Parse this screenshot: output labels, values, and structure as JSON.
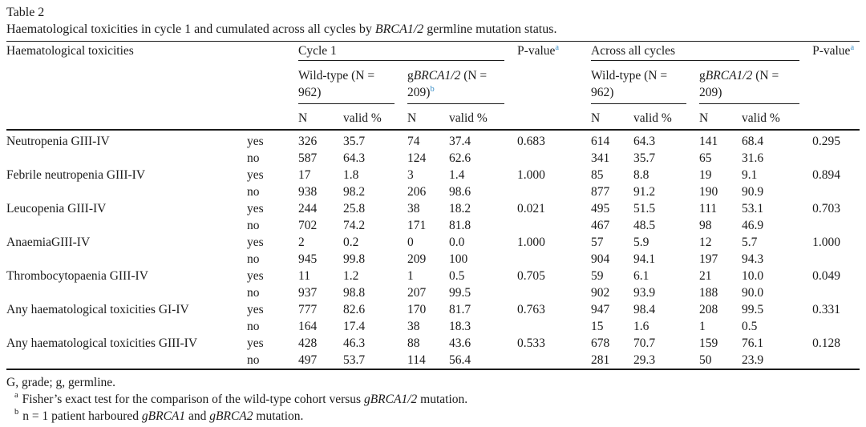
{
  "title": "Table 2",
  "caption": {
    "prefix": "Haematological toxicities in cycle 1 and cumulated across all cycles by ",
    "italic": "BRCA1/2",
    "suffix": " germline mutation status."
  },
  "colors": {
    "superscript_accent": "#3a8fc7",
    "text": "#1b1b1b"
  },
  "header": {
    "toxicities_label": "Haematological toxicities",
    "cycle1": "Cycle 1",
    "across": "Across all cycles",
    "pvalue": "P-value",
    "pvalue_sup": "a",
    "wildtype": "Wild-type (N = 962)",
    "gbrca_g": "g",
    "gbrca_gene": "BRCA1/2",
    "gbrca_rest": " (N = 209)",
    "gbrca_sup": "b",
    "n_label": "N",
    "valid_label": "valid %"
  },
  "rows": [
    {
      "label": "Neutropenia GIII-IV",
      "resp": "yes",
      "c": [
        "326",
        "35.7",
        "74",
        "37.4",
        "0.683",
        "614",
        "64.3",
        "141",
        "68.4",
        "0.295"
      ]
    },
    {
      "label": "",
      "resp": "no",
      "c": [
        "587",
        "64.3",
        "124",
        "62.6",
        "",
        "341",
        "35.7",
        "65",
        "31.6",
        ""
      ]
    },
    {
      "label": "Febrile neutropenia GIII-IV",
      "resp": "yes",
      "c": [
        "17",
        "1.8",
        "3",
        "1.4",
        "1.000",
        "85",
        "8.8",
        "19",
        "9.1",
        "0.894"
      ]
    },
    {
      "label": "",
      "resp": "no",
      "c": [
        "938",
        "98.2",
        "206",
        "98.6",
        "",
        "877",
        "91.2",
        "190",
        "90.9",
        ""
      ]
    },
    {
      "label": "Leucopenia GIII-IV",
      "resp": "yes",
      "c": [
        "244",
        "25.8",
        "38",
        "18.2",
        "0.021",
        "495",
        "51.5",
        "111",
        "53.1",
        "0.703"
      ]
    },
    {
      "label": "",
      "resp": "no",
      "c": [
        "702",
        "74.2",
        "171",
        "81.8",
        "",
        "467",
        "48.5",
        "98",
        "46.9",
        ""
      ]
    },
    {
      "label": "AnaemiaGIII-IV",
      "resp": "yes",
      "c": [
        "2",
        "0.2",
        "0",
        "0.0",
        "1.000",
        "57",
        "5.9",
        "12",
        "5.7",
        "1.000"
      ]
    },
    {
      "label": "",
      "resp": "no",
      "c": [
        "945",
        "99.8",
        "209",
        "100",
        "",
        "904",
        "94.1",
        "197",
        "94.3",
        ""
      ]
    },
    {
      "label": "Thrombocytopaenia GIII-IV",
      "resp": "yes",
      "c": [
        "11",
        "1.2",
        "1",
        "0.5",
        "0.705",
        "59",
        "6.1",
        "21",
        "10.0",
        "0.049"
      ]
    },
    {
      "label": "",
      "resp": "no",
      "c": [
        "937",
        "98.8",
        "207",
        "99.5",
        "",
        "902",
        "93.9",
        "188",
        "90.0",
        ""
      ]
    },
    {
      "label": "Any haematological toxicities GI-IV",
      "resp": "yes",
      "c": [
        "777",
        "82.6",
        "170",
        "81.7",
        "0.763",
        "947",
        "98.4",
        "208",
        "99.5",
        "0.331"
      ]
    },
    {
      "label": "",
      "resp": "no",
      "c": [
        "164",
        "17.4",
        "38",
        "18.3",
        "",
        "15",
        "1.6",
        "1",
        "0.5",
        ""
      ]
    },
    {
      "label": "Any haematological toxicities GIII-IV",
      "resp": "yes",
      "c": [
        "428",
        "46.3",
        "88",
        "43.6",
        "0.533",
        "678",
        "70.7",
        "159",
        "76.1",
        "0.128"
      ]
    },
    {
      "label": "",
      "resp": "no",
      "c": [
        "497",
        "53.7",
        "114",
        "56.4",
        "",
        "281",
        "29.3",
        "50",
        "23.9",
        ""
      ]
    }
  ],
  "footnotes": {
    "abbrev": "G, grade; g, germline.",
    "a_sup": "a",
    "a_prefix": "Fisher’s exact test for the comparison of the wild-type cohort versus ",
    "a_italic": "gBRCA1/2",
    "a_suffix": " mutation.",
    "b_sup": "b",
    "b_part1": "n = 1 patient harboured ",
    "b_italic1": "gBRCA1",
    "b_part2": " and ",
    "b_italic2": "gBRCA2",
    "b_suffix": " mutation."
  }
}
